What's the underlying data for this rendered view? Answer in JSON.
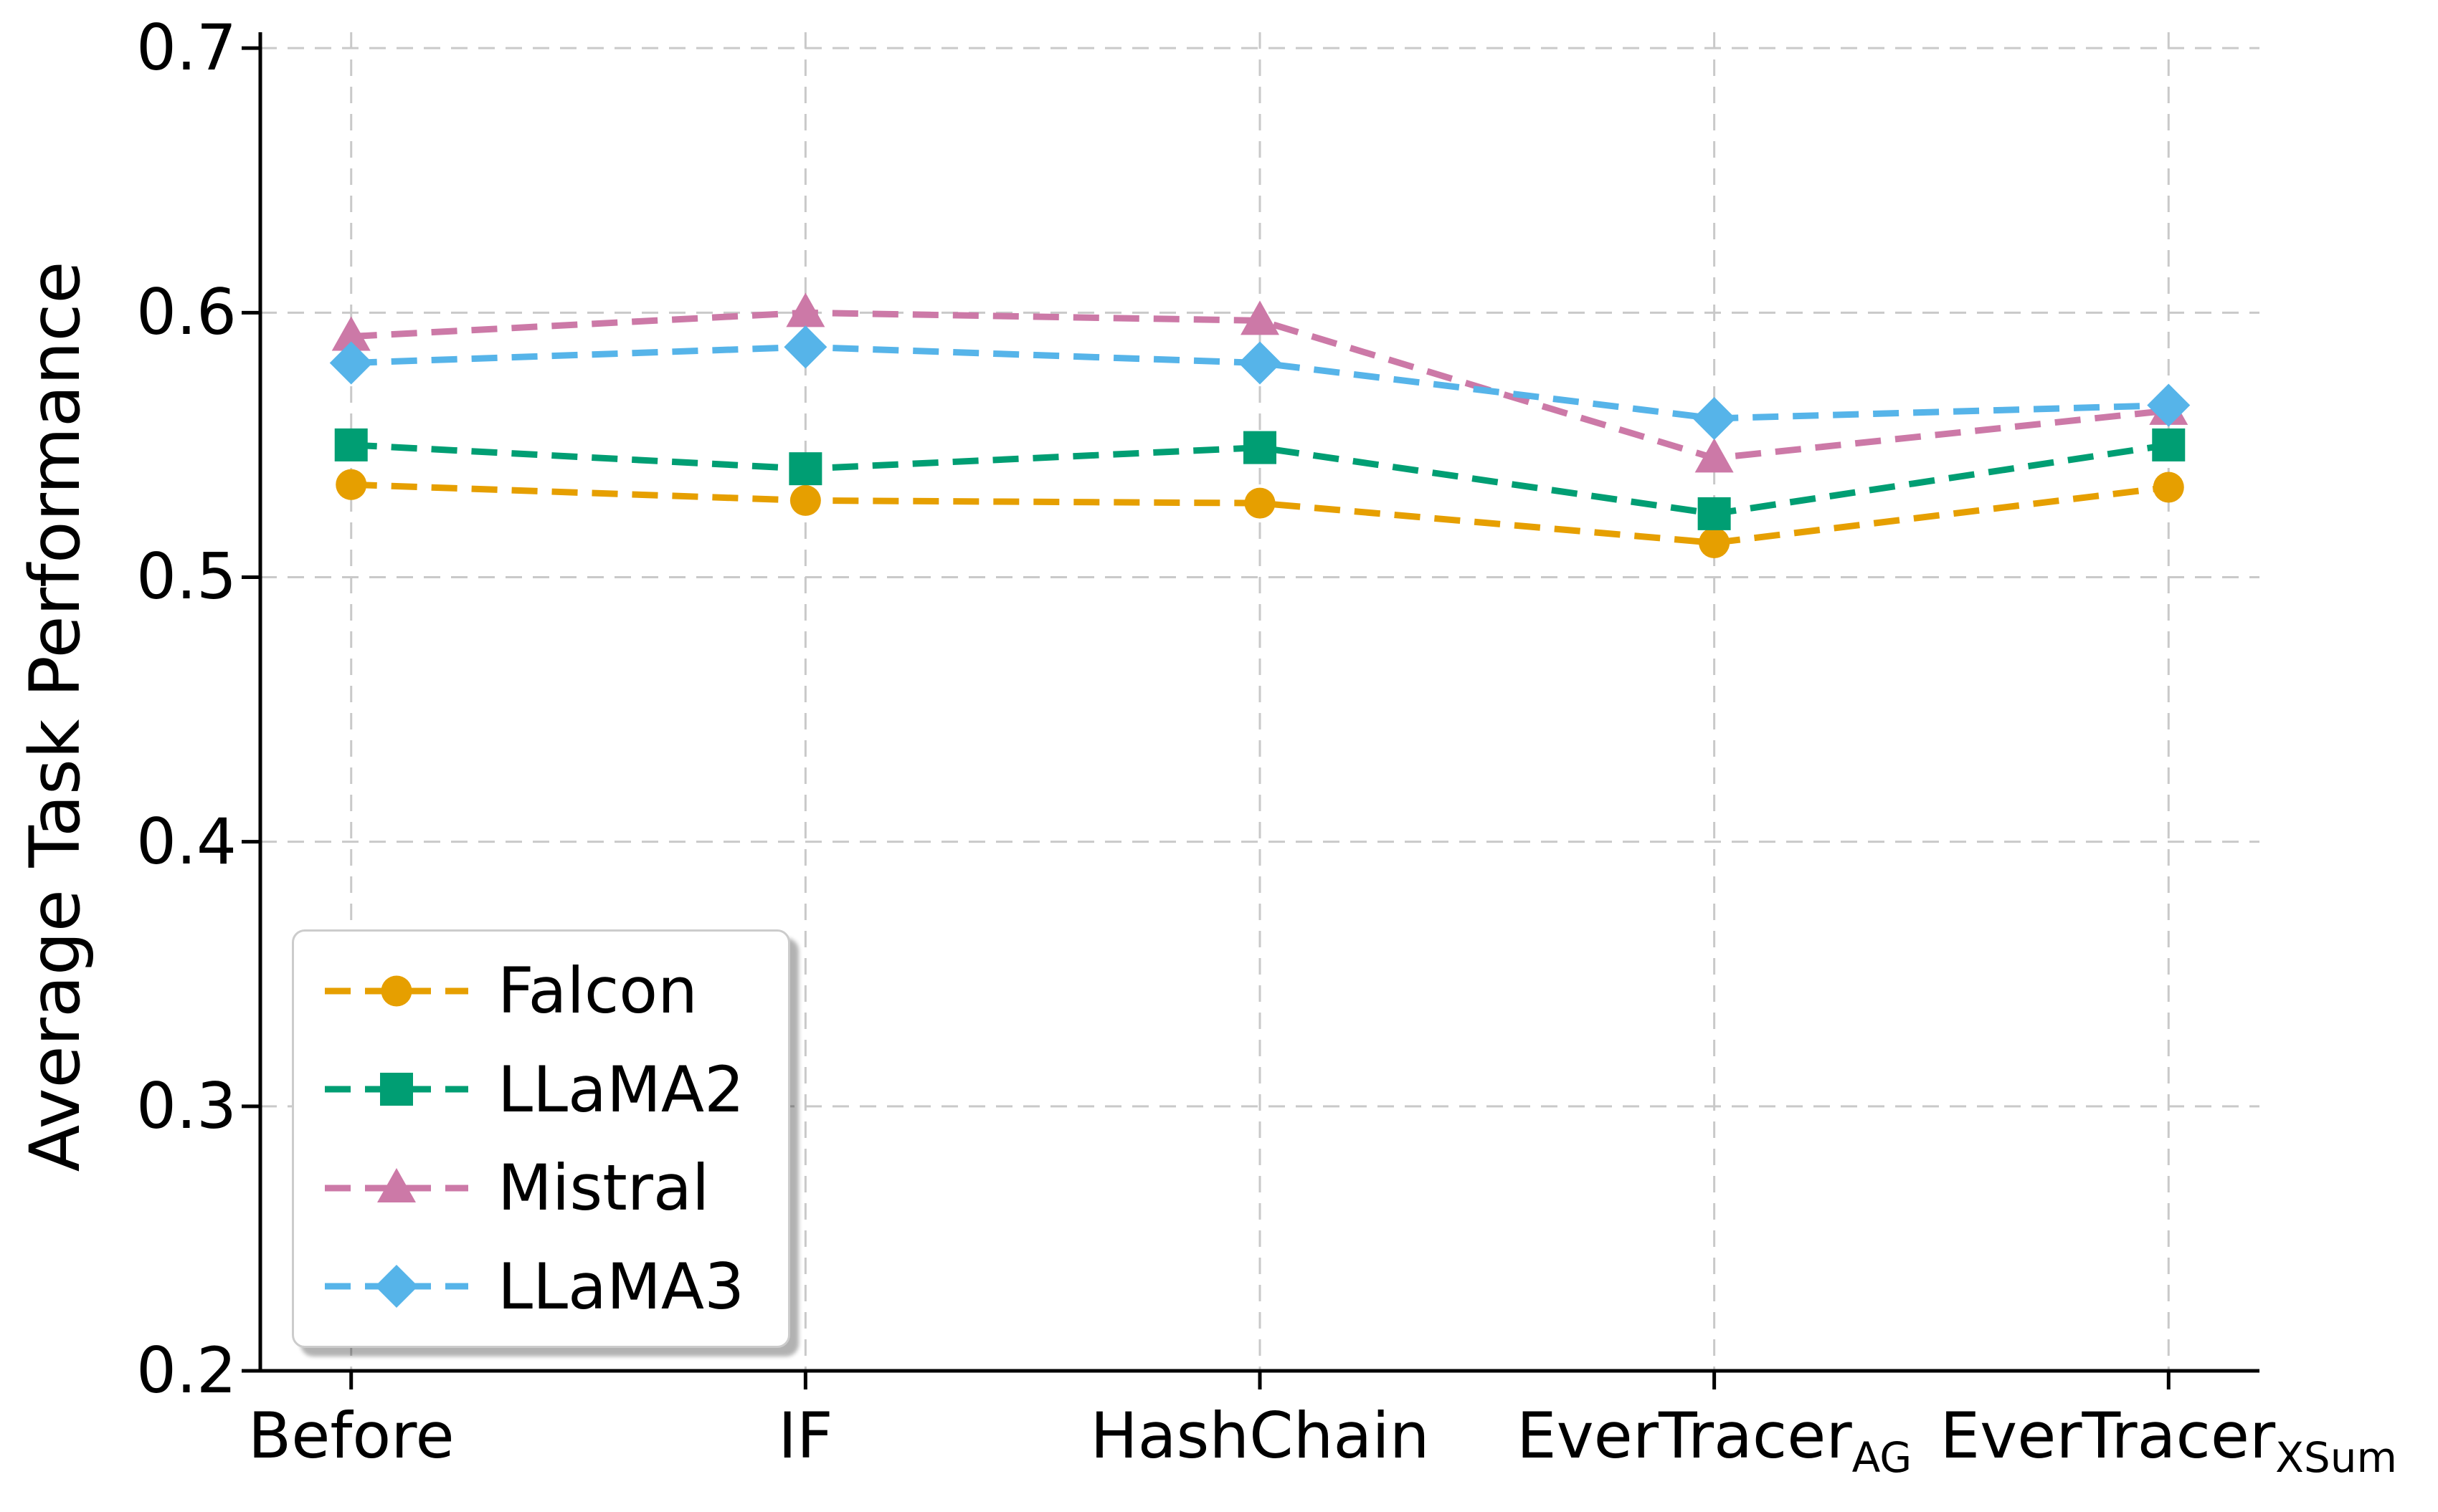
{
  "figure": {
    "background": "#ffffff",
    "text_color": "#000000",
    "grid_color": "#c9c9c9",
    "spine_color": "#000000"
  },
  "chart_data": {
    "type": "line",
    "title": "",
    "xlabel": "",
    "ylabel": "Average Task Performance",
    "categories": [
      "Before",
      "IF",
      "HashChain",
      "EverTracer_AG",
      "EverTracer_XSum"
    ],
    "x_tick_labels": [
      {
        "main": "Before",
        "sub": ""
      },
      {
        "main": "IF",
        "sub": ""
      },
      {
        "main": "HashChain",
        "sub": ""
      },
      {
        "main": "EverTracer",
        "sub": "AG"
      },
      {
        "main": "EverTracer",
        "sub": "XSum"
      }
    ],
    "ylim": [
      0.2,
      0.706
    ],
    "yticks": [
      0.2,
      0.3,
      0.4,
      0.5,
      0.6,
      0.7
    ],
    "grid": true,
    "grid_style": "dashed",
    "line_style": "dashed",
    "legend_position": "lower-left",
    "series": [
      {
        "name": "Falcon",
        "color": "#E69F00",
        "marker": "circle",
        "zorder": 1,
        "values": [
          0.535,
          0.529,
          0.528,
          0.513,
          0.534
        ]
      },
      {
        "name": "LLaMA2",
        "color": "#009E73",
        "marker": "square",
        "zorder": 3,
        "values": [
          0.55,
          0.541,
          0.549,
          0.524,
          0.55
        ]
      },
      {
        "name": "Mistral",
        "color": "#CC79A7",
        "marker": "triangle",
        "zorder": 2,
        "values": [
          0.591,
          0.6,
          0.597,
          0.545,
          0.563
        ]
      },
      {
        "name": "LLaMA3",
        "color": "#56B4E9",
        "marker": "diamond",
        "zorder": 4,
        "values": [
          0.581,
          0.587,
          0.581,
          0.56,
          0.565
        ]
      }
    ]
  }
}
